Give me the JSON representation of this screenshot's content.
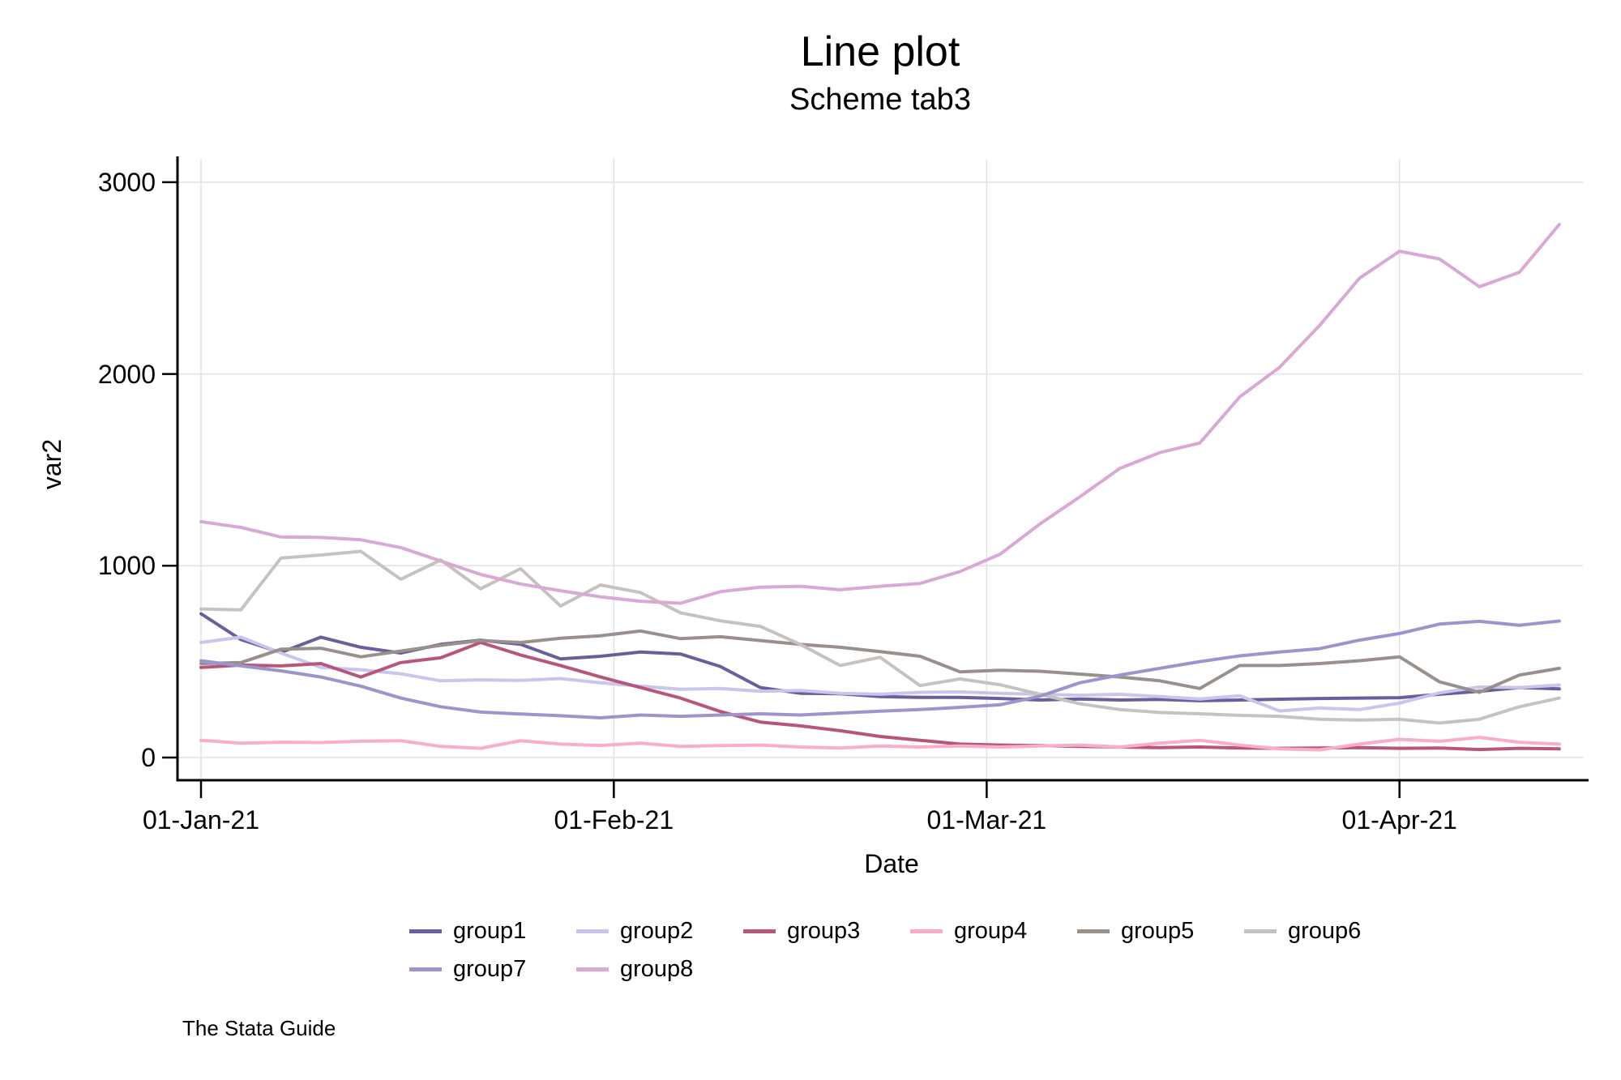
{
  "page": {
    "background": "#ffffff"
  },
  "chart_data": {
    "type": "line",
    "title": "Line plot",
    "subtitle": "Scheme tab3",
    "xlabel": "Date",
    "ylabel": "var2",
    "caption": "The Stata Guide",
    "legend_position": "bottom",
    "grid": true,
    "grid_color": "#e2e2e2",
    "axis_color": "#000000",
    "ylim": [
      0,
      3100
    ],
    "x_range_days": [
      0,
      104
    ],
    "x_ticks": [
      {
        "label": "01-Jan-21",
        "day": 0
      },
      {
        "label": "01-Feb-21",
        "day": 31
      },
      {
        "label": "01-Mar-21",
        "day": 59
      },
      {
        "label": "01-Apr-21",
        "day": 90
      }
    ],
    "y_ticks": [
      {
        "label": "0",
        "value": 0
      },
      {
        "label": "1000",
        "value": 1000
      },
      {
        "label": "2000",
        "value": 2000
      },
      {
        "label": "3000",
        "value": 3000
      }
    ],
    "x_days": [
      0,
      3,
      6,
      9,
      12,
      15,
      18,
      21,
      24,
      27,
      30,
      33,
      36,
      39,
      42,
      45,
      48,
      51,
      54,
      57,
      60,
      63,
      66,
      69,
      72,
      75,
      78,
      81,
      84,
      87,
      90,
      93,
      96,
      99,
      102
    ],
    "series": [
      {
        "name": "group1",
        "color": "#6a5f9d",
        "values": [
          750,
          615,
          548,
          628,
          575,
          545,
          590,
          612,
          590,
          514,
          528,
          550,
          540,
          475,
          365,
          335,
          333,
          318,
          314,
          314,
          308,
          300,
          305,
          300,
          303,
          296,
          300,
          304,
          308,
          310,
          312,
          330,
          345,
          365,
          358
        ]
      },
      {
        "name": "group2",
        "color": "#c9c5ec",
        "values": [
          600,
          628,
          545,
          470,
          458,
          437,
          400,
          405,
          402,
          412,
          390,
          372,
          356,
          360,
          345,
          350,
          335,
          330,
          340,
          342,
          335,
          330,
          325,
          330,
          318,
          305,
          322,
          243,
          258,
          250,
          284,
          337,
          368,
          365,
          378
        ]
      },
      {
        "name": "group3",
        "color": "#b75679",
        "values": [
          470,
          482,
          478,
          490,
          420,
          495,
          520,
          600,
          535,
          480,
          420,
          365,
          310,
          240,
          185,
          165,
          140,
          110,
          90,
          70,
          65,
          62,
          58,
          55,
          52,
          55,
          50,
          48,
          50,
          52,
          48,
          50,
          42,
          48,
          45
        ]
      },
      {
        "name": "group4",
        "color": "#f9aec6",
        "values": [
          90,
          75,
          80,
          78,
          85,
          88,
          58,
          48,
          88,
          70,
          63,
          75,
          58,
          62,
          65,
          55,
          50,
          60,
          55,
          60,
          55,
          60,
          65,
          55,
          75,
          90,
          65,
          45,
          40,
          70,
          95,
          85,
          105,
          80,
          70
        ]
      },
      {
        "name": "group5",
        "color": "#99908b",
        "values": [
          490,
          495,
          565,
          570,
          525,
          555,
          585,
          610,
          600,
          622,
          635,
          660,
          620,
          630,
          610,
          590,
          575,
          552,
          528,
          447,
          455,
          450,
          435,
          420,
          400,
          360,
          480,
          480,
          490,
          505,
          525,
          395,
          340,
          430,
          465
        ]
      },
      {
        "name": "group6",
        "color": "#c7c2bf",
        "values": [
          775,
          770,
          1040,
          1056,
          1075,
          930,
          1030,
          880,
          985,
          790,
          900,
          860,
          755,
          713,
          684,
          590,
          480,
          523,
          375,
          410,
          380,
          330,
          280,
          250,
          235,
          228,
          220,
          215,
          200,
          195,
          200,
          180,
          200,
          265,
          310
        ]
      },
      {
        "name": "group7",
        "color": "#9b95cc",
        "values": [
          505,
          478,
          452,
          420,
          372,
          310,
          265,
          237,
          227,
          218,
          207,
          222,
          215,
          222,
          228,
          222,
          232,
          242,
          250,
          262,
          275,
          320,
          390,
          430,
          465,
          500,
          530,
          550,
          568,
          612,
          647,
          696,
          710,
          690,
          712
        ]
      },
      {
        "name": "group8",
        "color": "#d9a8d4",
        "values": [
          1230,
          1200,
          1150,
          1148,
          1135,
          1095,
          1025,
          955,
          905,
          870,
          838,
          815,
          805,
          865,
          888,
          893,
          875,
          893,
          908,
          970,
          1060,
          1218,
          1360,
          1508,
          1590,
          1640,
          1880,
          2035,
          2253,
          2500,
          2640,
          2600,
          2455,
          2530,
          2780
        ]
      }
    ]
  }
}
